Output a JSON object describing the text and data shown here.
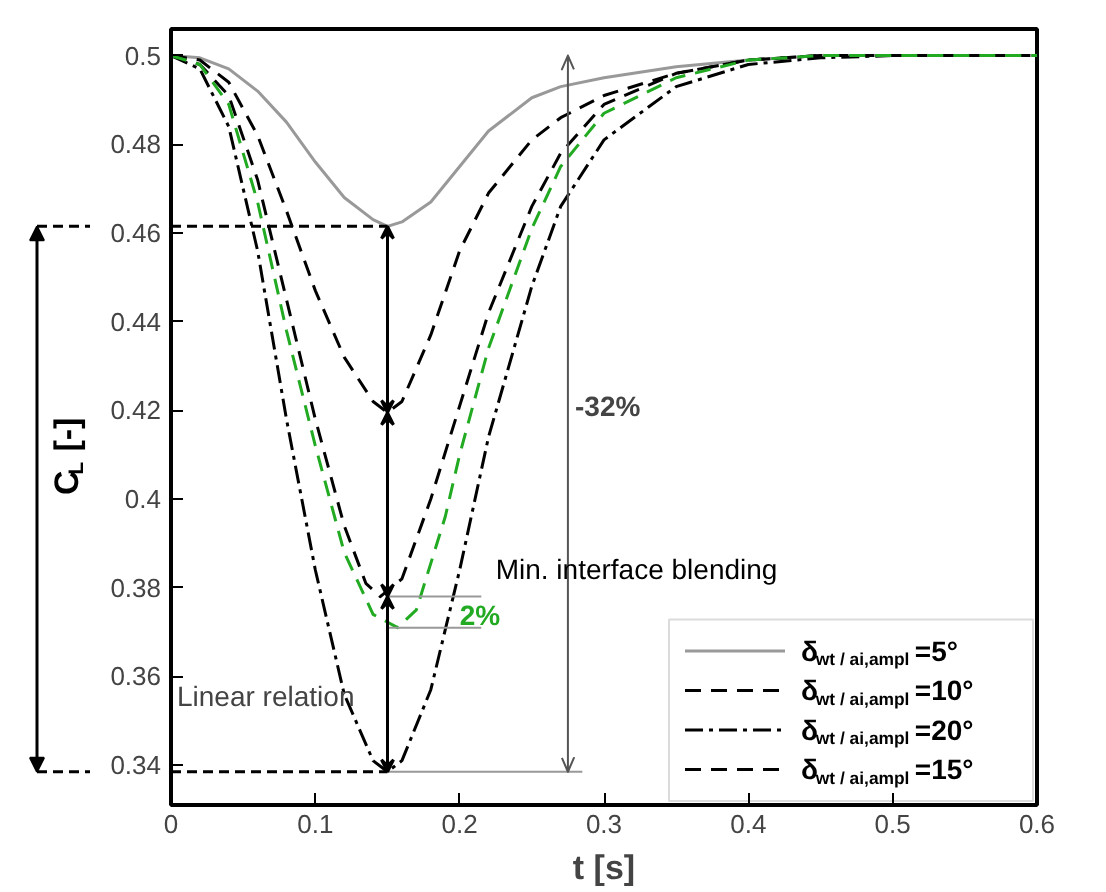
{
  "chart_data": {
    "type": "line",
    "xlabel": "t [s]",
    "ylabel": "C$_{L}$ [-]",
    "xlim": [
      0,
      0.6
    ],
    "ylim": [
      0.331,
      0.506
    ],
    "xticks": [
      0,
      0.1,
      0.2,
      0.3,
      0.4,
      0.5,
      0.6
    ],
    "yticks": [
      0.34,
      0.36,
      0.38,
      0.4,
      0.42,
      0.44,
      0.46,
      0.48,
      0.5
    ],
    "grid": false,
    "legend": "bottom right",
    "marker": "none",
    "series": [
      {
        "name": "δ$_{wt / ai,ampl}$=5°",
        "color": "#999999",
        "line_style": "solid",
        "x": [
          0,
          0.02,
          0.04,
          0.06,
          0.08,
          0.1,
          0.12,
          0.14,
          0.15,
          0.16,
          0.18,
          0.2,
          0.22,
          0.25,
          0.27,
          0.3,
          0.35,
          0.4,
          0.45,
          0.5,
          0.6
        ],
        "values": [
          0.5,
          0.4995,
          0.497,
          0.492,
          0.485,
          0.476,
          0.468,
          0.463,
          0.4615,
          0.4625,
          0.467,
          0.475,
          0.483,
          0.4905,
          0.493,
          0.495,
          0.4975,
          0.499,
          0.5,
          0.5,
          0.5
        ]
      },
      {
        "name": "δ$_{wt / ai,ampl}$=10°",
        "color": "#000000",
        "line_style": "dashed",
        "x": [
          0,
          0.02,
          0.04,
          0.06,
          0.08,
          0.1,
          0.12,
          0.14,
          0.15,
          0.16,
          0.18,
          0.2,
          0.22,
          0.25,
          0.27,
          0.3,
          0.35,
          0.4,
          0.45,
          0.5,
          0.6
        ],
        "values": [
          0.5,
          0.499,
          0.494,
          0.482,
          0.465,
          0.447,
          0.432,
          0.422,
          0.4195,
          0.422,
          0.437,
          0.456,
          0.469,
          0.481,
          0.486,
          0.491,
          0.496,
          0.499,
          0.5,
          0.5,
          0.5
        ]
      },
      {
        "name": "δ$_{wt / ai,ampl}$=20°",
        "color": "#000000",
        "line_style": "dashdot",
        "x": [
          0,
          0.02,
          0.04,
          0.06,
          0.08,
          0.1,
          0.12,
          0.14,
          0.15,
          0.16,
          0.18,
          0.2,
          0.22,
          0.25,
          0.27,
          0.3,
          0.35,
          0.4,
          0.45,
          0.5,
          0.6
        ],
        "values": [
          0.5,
          0.497,
          0.484,
          0.456,
          0.418,
          0.384,
          0.356,
          0.341,
          0.3385,
          0.341,
          0.357,
          0.384,
          0.414,
          0.448,
          0.466,
          0.481,
          0.493,
          0.498,
          0.4995,
          0.5,
          0.5
        ]
      },
      {
        "name": "δ$_{wt / ai,ampl}$=15°",
        "color": "#000000",
        "line_style": "dashed",
        "x": [
          0,
          0.02,
          0.04,
          0.06,
          0.08,
          0.1,
          0.12,
          0.135,
          0.145,
          0.16,
          0.18,
          0.2,
          0.22,
          0.25,
          0.27,
          0.3,
          0.35,
          0.4,
          0.45,
          0.5,
          0.6
        ],
        "values": [
          0.5,
          0.498,
          0.491,
          0.472,
          0.445,
          0.418,
          0.394,
          0.381,
          0.378,
          0.382,
          0.4,
          0.421,
          0.442,
          0.466,
          0.478,
          0.489,
          0.496,
          0.499,
          0.5,
          0.5,
          0.5
        ]
      },
      {
        "color": "#22aa22",
        "line_style": "dashed",
        "x": [
          0,
          0.02,
          0.04,
          0.06,
          0.08,
          0.1,
          0.12,
          0.14,
          0.157,
          0.17,
          0.19,
          0.2,
          0.22,
          0.25,
          0.27,
          0.3,
          0.35,
          0.4,
          0.45,
          0.5,
          0.6
        ],
        "values": [
          0.5,
          0.498,
          0.489,
          0.467,
          0.438,
          0.412,
          0.388,
          0.374,
          0.371,
          0.375,
          0.396,
          0.41,
          0.434,
          0.461,
          0.475,
          0.487,
          0.495,
          0.499,
          0.5,
          0.5,
          0.5
        ]
      }
    ],
    "ref_lines": [
      {
        "axis": "x",
        "value": 0.275,
        "color": "#555555"
      }
    ],
    "annotations": [
      {
        "text": "2%",
        "x": 0.2,
        "y": 0.373
      },
      "-32%",
      {
        "text": "Min. interface blending",
        "x": 0.2,
        "y": 0.378
      },
      "Linear relation"
    ]
  }
}
